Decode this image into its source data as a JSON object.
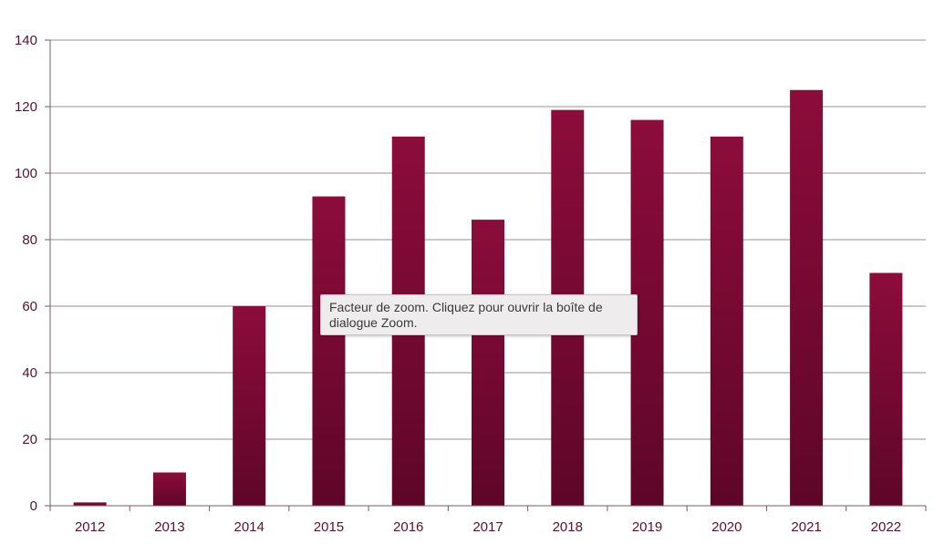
{
  "chart_data": {
    "type": "bar",
    "categories": [
      "2012",
      "2013",
      "2014",
      "2015",
      "2016",
      "2017",
      "2018",
      "2019",
      "2020",
      "2021",
      "2022"
    ],
    "values": [
      1,
      10,
      60,
      93,
      111,
      86,
      119,
      116,
      111,
      125,
      70
    ],
    "ylim": [
      0,
      140
    ],
    "yticks": [
      0,
      20,
      40,
      60,
      80,
      100,
      120,
      140
    ],
    "grid": true,
    "bar_color_top": "#8c0c3a",
    "bar_color_bottom": "#5e0628",
    "axis_color": "#7a5a68",
    "label_color": "#5a1030"
  },
  "tooltip": {
    "text": "Facteur de zoom. Cliquez pour ouvrir la boîte de dialogue Zoom."
  }
}
